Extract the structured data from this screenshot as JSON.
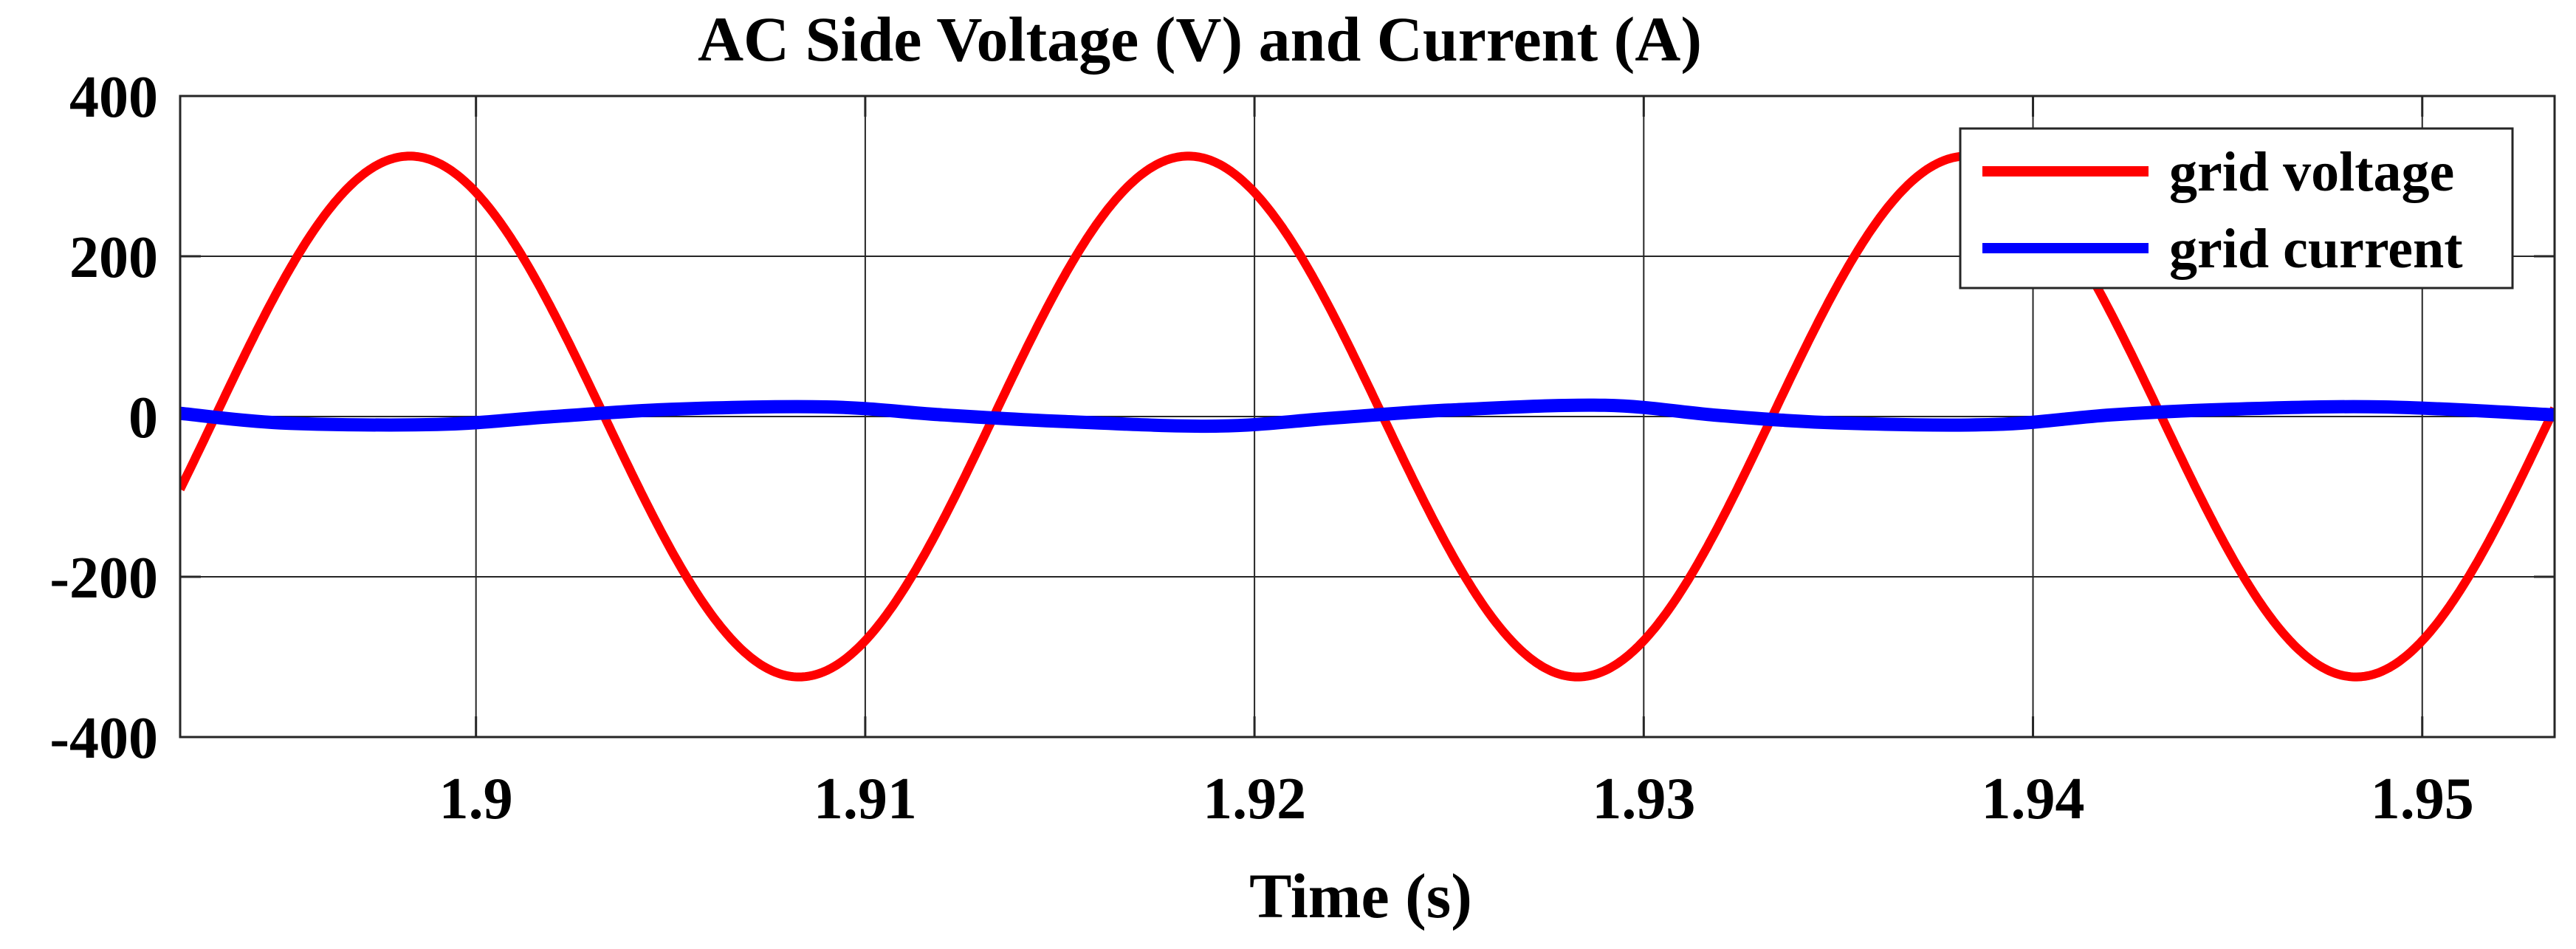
{
  "chart_data": {
    "type": "line",
    "title": "AC Side Voltage (V)  and Current (A)",
    "xlabel": "Time (s)",
    "ylabel": "",
    "xlim": [
      1.8924,
      1.9534
    ],
    "ylim": [
      -400,
      400
    ],
    "xticks": [
      1.9,
      1.91,
      1.92,
      1.93,
      1.94,
      1.95
    ],
    "xtick_labels": [
      "1.9",
      "1.91",
      "1.92",
      "1.93",
      "1.94",
      "1.95"
    ],
    "yticks": [
      400,
      200,
      0,
      -200,
      -400
    ],
    "ytick_labels": [
      "400",
      "200",
      "0",
      "-200",
      "-400"
    ],
    "grid": true,
    "legend_position": "top-right",
    "series": [
      {
        "name": "grid voltage",
        "color": "#ff0000",
        "form": "sinusoid",
        "amplitude": 325,
        "frequency_hz": 50,
        "zero_crossing_rising": 1.8933
      },
      {
        "name": "grid current",
        "color": "#0000ff",
        "x": [
          1.8924,
          1.895,
          1.899,
          1.902,
          1.905,
          1.909,
          1.912,
          1.915,
          1.919,
          1.922,
          1.925,
          1.929,
          1.932,
          1.935,
          1.939,
          1.942,
          1.945,
          1.949,
          1.9534
        ],
        "y": [
          4,
          -8,
          -10,
          0,
          9,
          12,
          2,
          -6,
          -12,
          -2,
          8,
          14,
          1,
          -8,
          -10,
          2,
          9,
          12,
          2
        ]
      }
    ]
  }
}
